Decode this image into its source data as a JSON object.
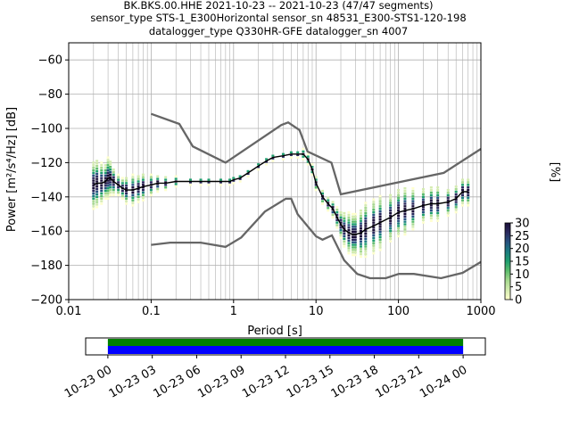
{
  "header": {
    "line1": "BK.BKS.00.HHE   2021-10-23 -- 2021-10-23  (47/47 segments)",
    "line2": "sensor_type STS-1_E300Horizontal sensor_sn 48531_E300-STS1-120-198",
    "line3": "datalogger_type Q330HR-GFE datalogger_sn 4007"
  },
  "colorbar": {
    "label": "[%]",
    "ticks": [
      "0",
      "5",
      "10",
      "15",
      "20",
      "25",
      "30"
    ],
    "min": 0,
    "max": 30,
    "colors": [
      "#ffffcc",
      "#d4ecb0",
      "#a6d98e",
      "#5cbc6c",
      "#1f9e6e",
      "#1b7c80",
      "#27527f",
      "#2b2a5e",
      "#1a0f38"
    ]
  },
  "timeline": {
    "ticks": [
      "10-23 00",
      "10-23 03",
      "10-23 06",
      "10-23 09",
      "10-23 12",
      "10-23 15",
      "10-23 18",
      "10-23 21",
      "10-24 00"
    ],
    "start_hour": -1.5,
    "end_hour": 25.5,
    "coverage_start_hour": 0,
    "coverage_end_hour": 24,
    "colors": {
      "data": "#0000ff",
      "gaps": "#008000"
    }
  },
  "chart_data": {
    "type": "line",
    "title": "BK.BKS.00.HHE   2021-10-23 -- 2021-10-23  (47/47 segments)",
    "xlabel": "Period [s]",
    "ylabel": "Power [m²/s⁴/Hz] [dB]",
    "xscale": "log",
    "xlim": [
      0.01,
      1000
    ],
    "ylim": [
      -200,
      -50
    ],
    "xticks": [
      "0.01",
      "0.1",
      "1",
      "10",
      "100",
      "1000"
    ],
    "yticks": [
      "−200",
      "−180",
      "−160",
      "−140",
      "−120",
      "−100",
      "−80",
      "−60"
    ],
    "grid": true,
    "colors": {
      "mode": "#000000",
      "noise_models": "#666666"
    },
    "series": [
      {
        "role": "mode",
        "x": [
          0.02,
          0.022,
          0.025,
          0.028,
          0.03,
          0.032,
          0.035,
          0.04,
          0.045,
          0.05,
          0.06,
          0.07,
          0.08,
          0.1,
          0.12,
          0.15,
          0.2,
          0.3,
          0.4,
          0.5,
          0.7,
          0.9,
          1.0,
          1.2,
          1.5,
          2,
          2.5,
          3,
          4,
          5,
          6,
          7,
          8,
          9,
          10,
          12,
          14,
          16,
          18,
          20,
          22,
          25,
          28,
          30,
          35,
          40,
          50,
          60,
          80,
          100,
          120,
          150,
          200,
          250,
          300,
          400,
          500,
          600,
          700
        ],
        "y": [
          -133,
          -132,
          -132,
          -131,
          -129,
          -129,
          -131,
          -133,
          -135,
          -136,
          -136,
          -135,
          -134,
          -133,
          -132,
          -132,
          -131,
          -131,
          -131,
          -131,
          -131,
          -131,
          -130,
          -129,
          -126,
          -122,
          -119,
          -117,
          -116,
          -115,
          -115,
          -115,
          -118,
          -124,
          -132,
          -140,
          -144,
          -147,
          -152,
          -156,
          -159,
          -161,
          -162,
          -162,
          -161,
          -159,
          -157,
          -155,
          -152,
          -149,
          -148,
          -147,
          -145,
          -144,
          -144,
          -143,
          -141,
          -137,
          -137
        ]
      },
      {
        "role": "noise_model_high",
        "x": [
          0.1,
          0.22,
          0.32,
          0.8,
          3.8,
          4.6,
          6.3,
          7.9,
          15.4,
          20,
          354.8,
          1000
        ],
        "y": [
          -91.5,
          -97.4,
          -110.5,
          -120,
          -98,
          -96.5,
          -101,
          -113.5,
          -120,
          -138.5,
          -126,
          -112
        ]
      },
      {
        "role": "noise_model_low",
        "x": [
          0.1,
          0.17,
          0.4,
          0.8,
          1.24,
          2.4,
          4.3,
          5.0,
          6.0,
          10.0,
          12.0,
          15.6,
          21.9,
          31.6,
          45,
          70,
          101,
          154,
          328,
          600,
          1000
        ],
        "y": [
          -168,
          -166.7,
          -166.7,
          -169.2,
          -163.7,
          -148.6,
          -141.1,
          -141.1,
          -150.2,
          -163,
          -165,
          -162.5,
          -177,
          -185,
          -187.5,
          -187.5,
          -185,
          -185,
          -187.5,
          -184.4,
          -178
        ]
      }
    ],
    "histogram": {
      "description_colorbar_max_percent": 30,
      "spread_db": [
        14,
        14,
        12,
        10,
        12,
        10,
        8,
        6,
        6,
        8,
        9,
        8,
        8,
        6,
        5,
        4,
        3,
        2,
        2,
        2,
        2,
        2,
        2,
        2,
        2,
        2,
        2,
        2,
        2,
        2,
        2,
        3,
        3,
        3,
        4,
        4,
        4,
        5,
        6,
        8,
        10,
        12,
        12,
        12,
        14,
        16,
        16,
        16,
        14,
        14,
        14,
        12,
        10,
        10,
        10,
        8,
        8,
        8,
        8
      ]
    }
  }
}
